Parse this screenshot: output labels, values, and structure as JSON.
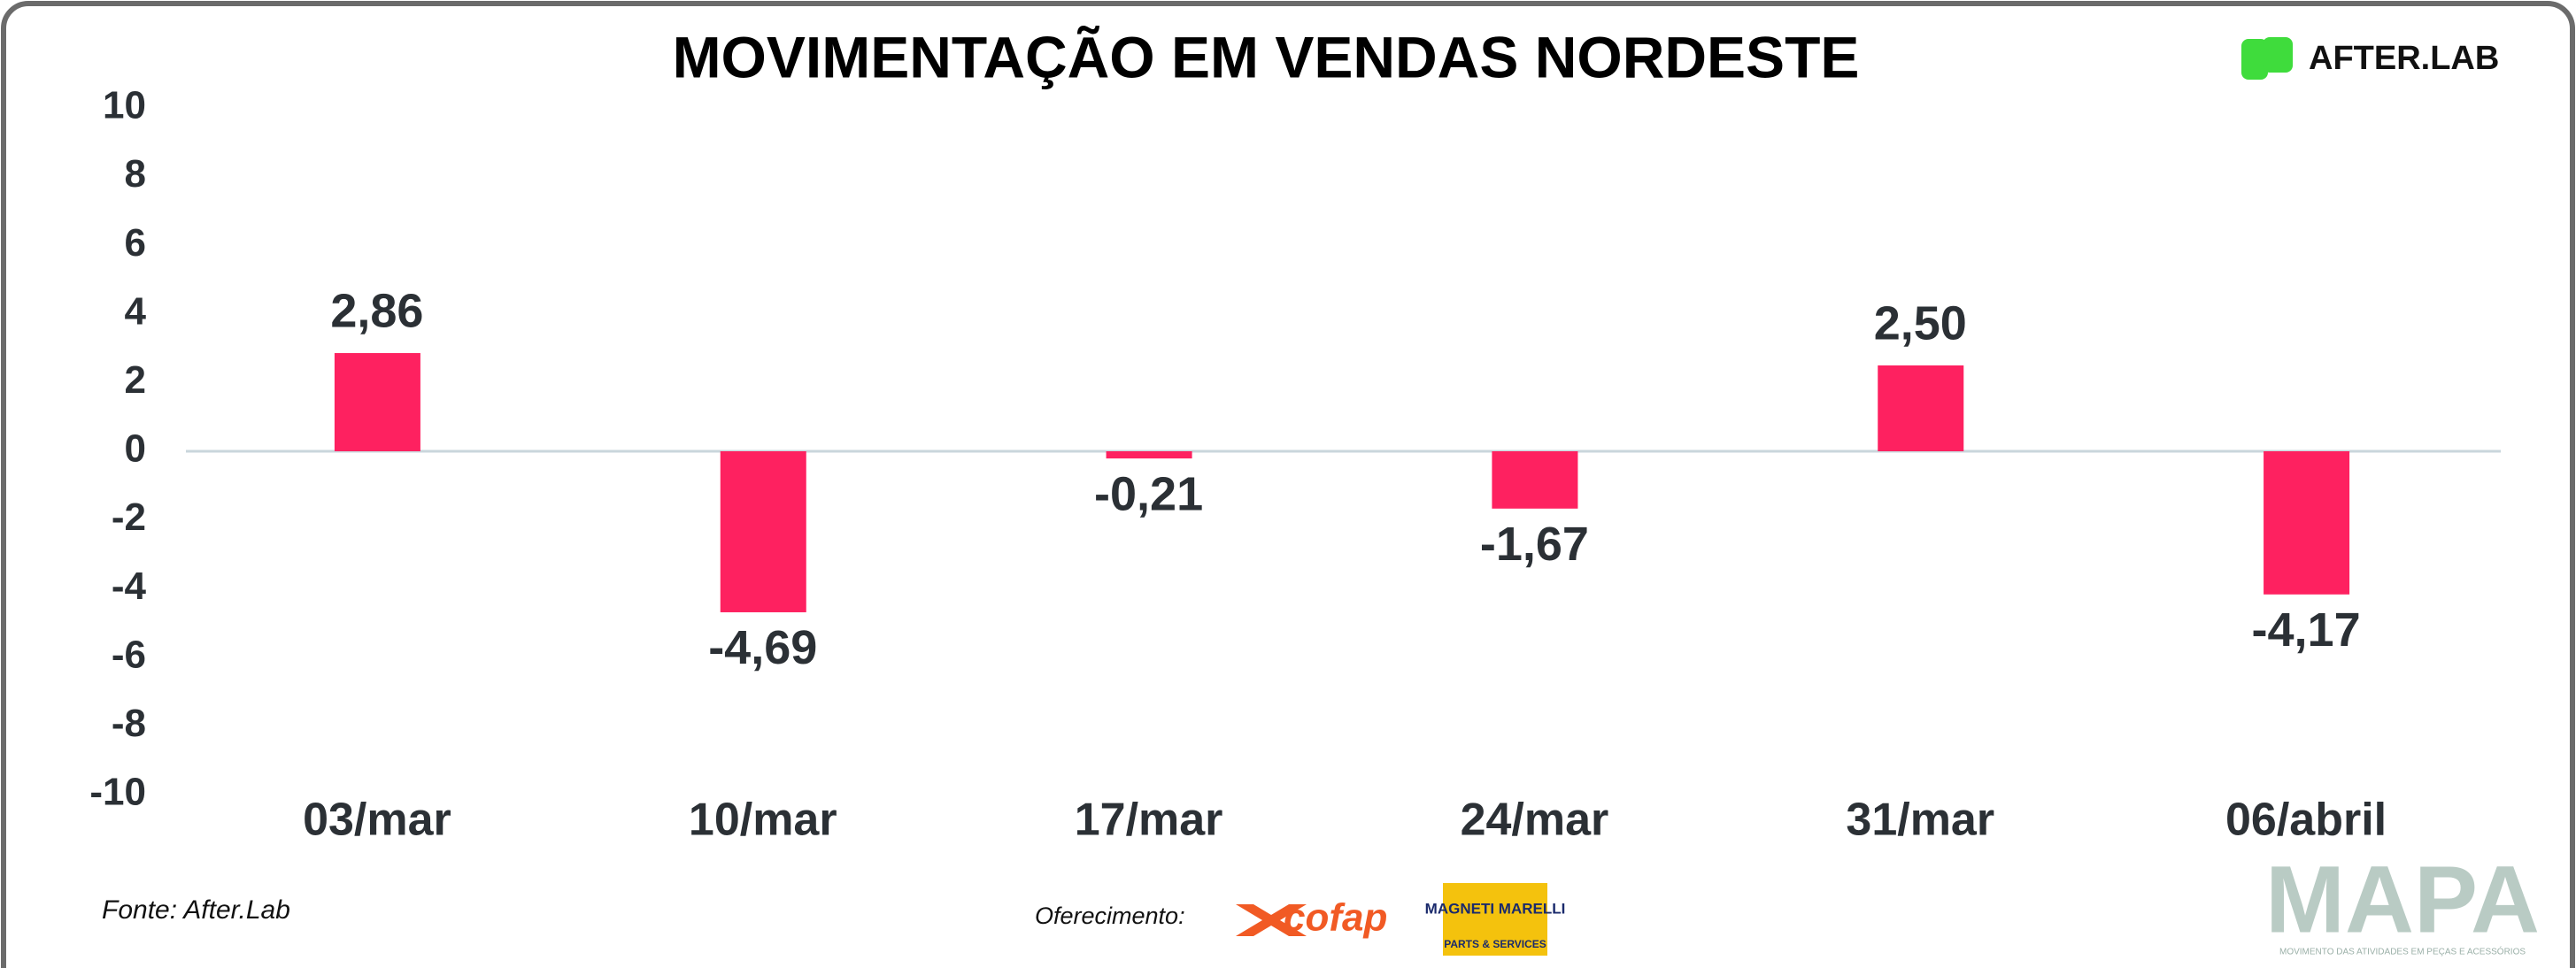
{
  "chart_data": {
    "type": "bar",
    "title": "MOVIMENTAÇÃO EM VENDAS NORDESTE",
    "categories": [
      "03/mar",
      "10/mar",
      "17/mar",
      "24/mar",
      "31/mar",
      "06/abril"
    ],
    "values": [
      2.86,
      -4.69,
      -0.21,
      -1.67,
      2.5,
      -4.17
    ],
    "value_labels": [
      "2,86",
      "-4,69",
      "-0,21",
      "-1,67",
      "2,50",
      "-4,17"
    ],
    "color": "#fe2160",
    "ylim": [
      -10,
      10
    ],
    "yticks": [
      -10,
      -8,
      -6,
      -4,
      -2,
      0,
      2,
      4,
      6,
      8,
      10
    ]
  },
  "brand": "AFTER.LAB",
  "source": "Fonte: After.Lab",
  "sponsor_label": "Oferecimento:",
  "sponsors": {
    "cofap": "cofap",
    "magneti": "MAGNETI MARELLI",
    "magneti_sub": "PARTS & SERVICES"
  },
  "footer_logo": "MAPA",
  "footer_tagline": "MOVIMENTO DAS ATIVIDADES EM PEÇAS E ACESSÓRIOS"
}
